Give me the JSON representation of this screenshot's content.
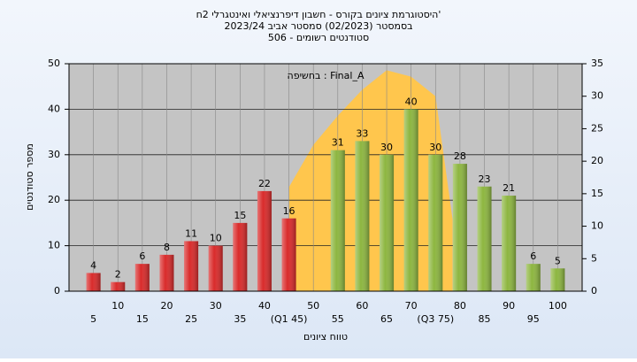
{
  "chart_data": {
    "type": "bar",
    "title": [
      "היסטוגרמת ציונים בקורס - חשבון דיפרנציאלי ואינטגרלי 2ח'",
      "בסמסטר  (02/2023)  סמסטר אביב 2023/24",
      "סטודנטים רשומים - 506"
    ],
    "annotation": "בחשיפה : Final_A",
    "ylabel": "מספר סטודנטים",
    "xlabel": "טווח ציונים",
    "x": [
      5,
      10,
      15,
      20,
      25,
      30,
      35,
      40,
      45,
      50,
      55,
      60,
      65,
      70,
      75,
      80,
      85,
      90,
      95,
      100
    ],
    "values": [
      4,
      2,
      6,
      8,
      11,
      10,
      15,
      22,
      16,
      null,
      31,
      33,
      30,
      40,
      30,
      28,
      23,
      21,
      6,
      5
    ],
    "bar_colors": [
      "#d92b2b",
      "#d92b2b",
      "#d92b2b",
      "#d92b2b",
      "#d92b2b",
      "#d92b2b",
      "#d92b2b",
      "#d92b2b",
      "#d92b2b",
      "#d92b2b",
      "#8db640",
      "#8db640",
      "#8db640",
      "#8db640",
      "#8db640",
      "#8db640",
      "#8db640",
      "#8db640",
      "#8db640",
      "#8db640"
    ],
    "area": {
      "color": "#ffc64d",
      "axis": "y2",
      "x": [
        45,
        50,
        55,
        60,
        65,
        70,
        75,
        78.5
      ],
      "values": [
        16,
        22.5,
        27,
        31,
        34,
        33,
        30,
        11
      ]
    },
    "xlim": [
      0,
      105
    ],
    "xticks": [
      5,
      10,
      15,
      20,
      25,
      30,
      35,
      40,
      {
        "value": 45,
        "label": "(Q1 45)"
      },
      50,
      55,
      60,
      65,
      70,
      {
        "value": 75,
        "label": "(Q3 75)"
      },
      80,
      85,
      90,
      95,
      100
    ],
    "ylim": [
      0,
      50
    ],
    "yticks": [
      0,
      10,
      20,
      30,
      40,
      50
    ],
    "y2lim": [
      0,
      35
    ],
    "y2ticks": [
      0,
      5,
      10,
      15,
      20,
      25,
      30,
      35
    ],
    "grid": true
  }
}
